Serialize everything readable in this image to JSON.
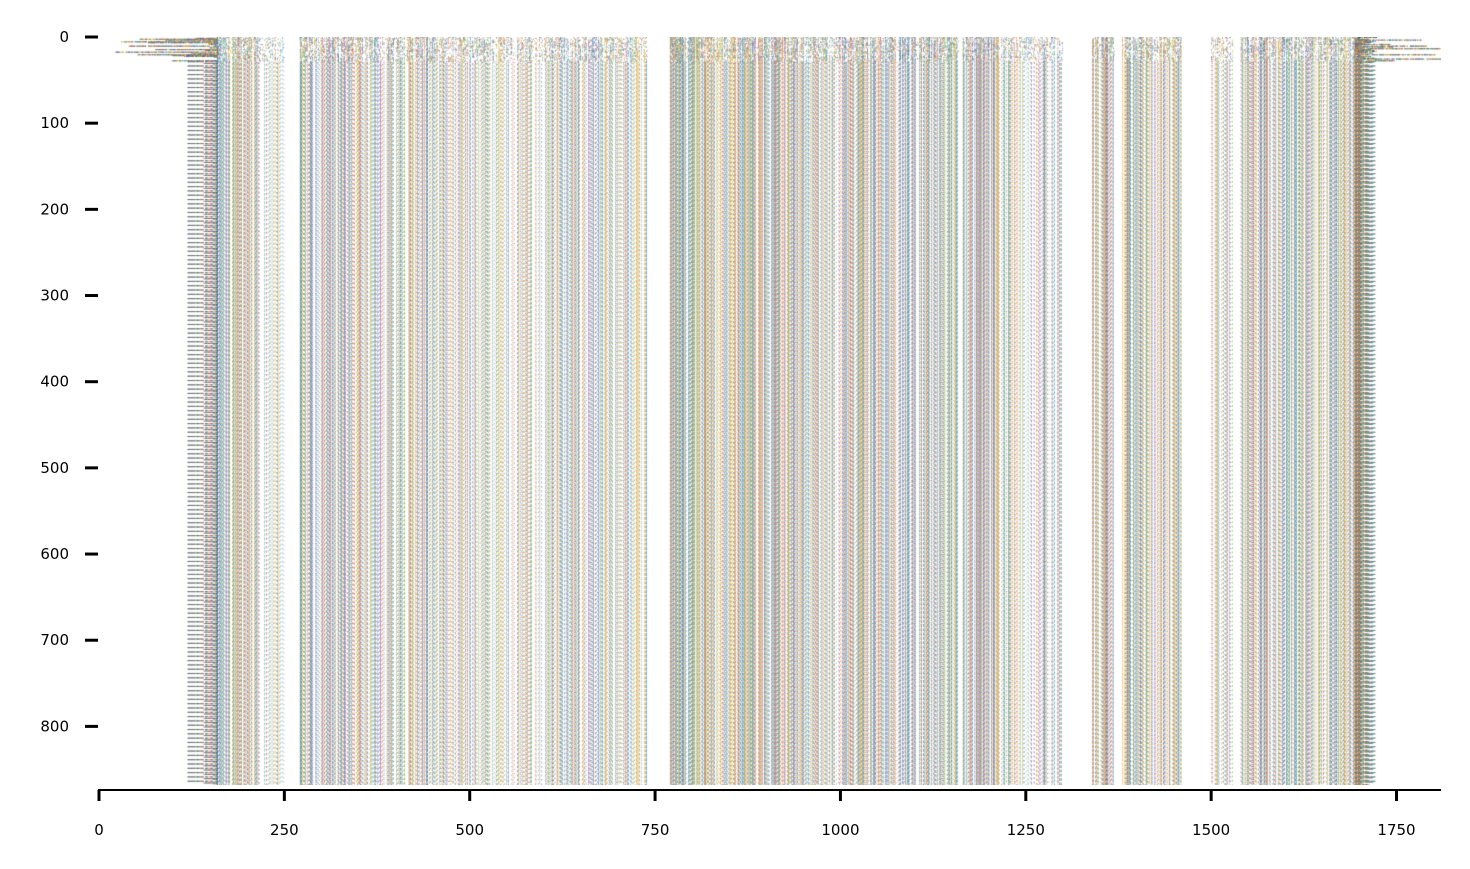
{
  "chart_data": {
    "type": "heatmap",
    "title": "",
    "xlabel": "",
    "ylabel": "",
    "xlim": [
      0,
      1810
    ],
    "ylim": [
      0,
      868
    ],
    "y_inverted": true,
    "grid": false,
    "x_ticks": [
      {
        "value": 0,
        "label": "0"
      },
      {
        "value": 250,
        "label": "250"
      },
      {
        "value": 500,
        "label": "500"
      },
      {
        "value": 750,
        "label": "750"
      },
      {
        "value": 1000,
        "label": "1000"
      },
      {
        "value": 1250,
        "label": "1250"
      },
      {
        "value": 1500,
        "label": "1500"
      },
      {
        "value": 1750,
        "label": "1750"
      }
    ],
    "y_ticks": [
      {
        "value": 0,
        "label": "0"
      },
      {
        "value": 100,
        "label": "100"
      },
      {
        "value": 200,
        "label": "200"
      },
      {
        "value": 300,
        "label": "300"
      },
      {
        "value": 400,
        "label": "400"
      },
      {
        "value": 500,
        "label": "500"
      },
      {
        "value": 600,
        "label": "600"
      },
      {
        "value": 700,
        "label": "700"
      },
      {
        "value": 800,
        "label": "800"
      }
    ],
    "palette": [
      "#2e5c8a",
      "#3a7d7c",
      "#6a9f4e",
      "#c9a227",
      "#b5523b",
      "#8e5b9e",
      "#4f8fbf",
      "#d98c3c"
    ],
    "left_edge": {
      "start_range": [
        40,
        160
      ],
      "solid_end": 160
    },
    "right_edge": {
      "start": 1693,
      "end_range": [
        1700,
        1810
      ]
    },
    "column_bands": [
      {
        "range": [
          160,
          215
        ],
        "density": 0.65
      },
      {
        "range": [
          215,
          250
        ],
        "density": 0.25
      },
      {
        "range": [
          270,
          340
        ],
        "density": 0.55
      },
      {
        "range": [
          340,
          460
        ],
        "density": 0.55
      },
      {
        "range": [
          460,
          640
        ],
        "density": 0.45
      },
      {
        "range": [
          640,
          740
        ],
        "density": 0.5
      },
      {
        "range": [
          770,
          810
        ],
        "density": 0.95
      },
      {
        "range": [
          810,
          860
        ],
        "density": 0.6
      },
      {
        "range": [
          860,
          930
        ],
        "density": 0.8
      },
      {
        "range": [
          930,
          1040
        ],
        "density": 0.55
      },
      {
        "range": [
          1040,
          1160
        ],
        "density": 0.7
      },
      {
        "range": [
          1165,
          1215
        ],
        "density": 0.95
      },
      {
        "range": [
          1215,
          1300
        ],
        "density": 0.35
      },
      {
        "range": [
          1340,
          1370
        ],
        "density": 0.8
      },
      {
        "range": [
          1380,
          1460
        ],
        "density": 0.6
      },
      {
        "range": [
          1500,
          1530
        ],
        "density": 0.3
      },
      {
        "range": [
          1540,
          1640
        ],
        "density": 0.65
      },
      {
        "range": [
          1640,
          1693
        ],
        "density": 0.5
      }
    ]
  }
}
